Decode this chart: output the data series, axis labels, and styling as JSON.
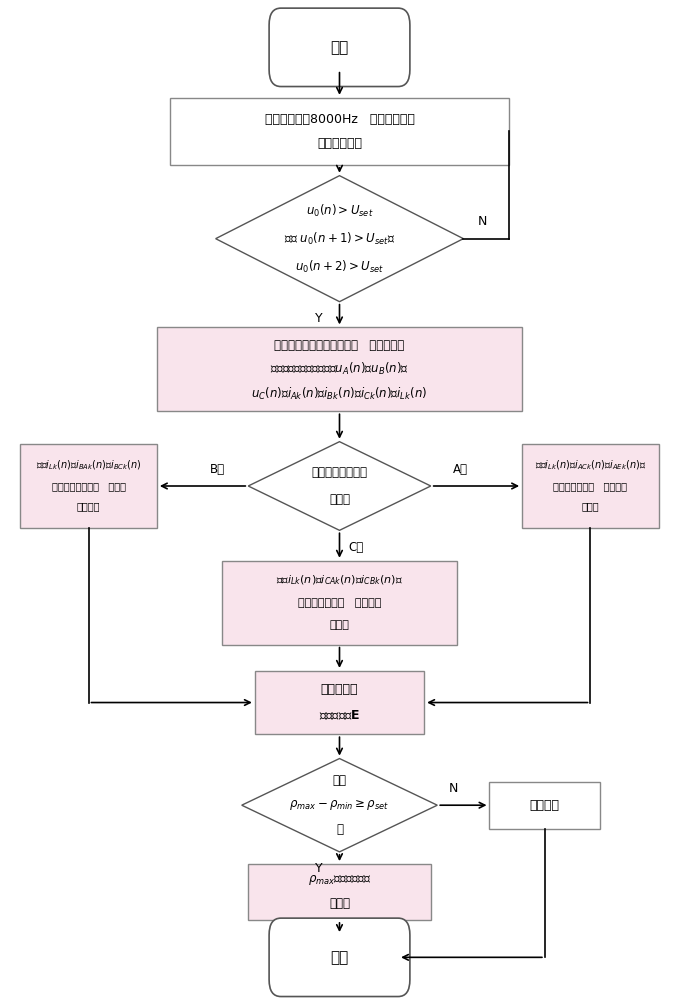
{
  "bg_color": "#ffffff",
  "line_color": "#000000",
  "box_border": "#555555",
  "pink_fill": "#f9e4ec",
  "gray_fill": "#eeeeee",
  "white_fill": "#ffffff",
  "start_text": "开始",
  "end_text": "结束",
  "sample_text": "设采样频率为8000Hz   对配电网母线\n零序电压采样",
  "diamond1_line1": "$u_0(n)>U_{set}$",
  "diamond1_line2": "满足 $u_0(n+1)>U_{set}$？",
  "diamond1_line3": "$u_0(n+2)>U_{set}$",
  "record_line1": "配电网发生了单相接地故障   记录故障发",
  "record_line2": "生后一个周期的采样序列$u_A(n)$、$u_B(n)$、",
  "record_line3": "$u_C(n)$、$i_{Ak}(n)$、$i_{Bk}(n)$、$i_{Ck}(n)$、$i_{Lk}(n)$",
  "bus_diamond_line1": "母线相电压故障选",
  "bus_diamond_line2": "相判断",
  "phase_b_line1": "对：$i_{Lk}(n)$、$i_{BAk}(n)$、$i_{BCk}(n)$",
  "phase_b_line2": "进行数字阶波处理   并进行",
  "phase_b_line3": "相关分析",
  "phase_a_line1": "对：$i_{Lk}(n)$、$i_{ACk}(n)$、$i_{AEk}(n)$进",
  "phase_a_line2": "行数字阶波处理   并进行桂",
  "phase_a_line3": "关分析",
  "phase_c_line1": "对：$i_{Lk}(n)$、$i_{CAk}(n)$、$i_{CBk}(n)$进",
  "phase_c_line2": "行数字阶波处理   并进行桂",
  "phase_c_line3": "关分析",
  "matrix_line1": "形成综合相",
  "matrix_line2": "关系数矩阵$\\mathbf{E}$",
  "diamond2_line1": "满足",
  "diamond2_line2": "$\\rho_{max}-\\rho_{min}\\geq\\rho_{set}$",
  "diamond2_line3": "？",
  "busfault_text": "母线故障",
  "faultline_line1": "$\\rho_{max}$对应线路为故",
  "faultline_line2": "障线路",
  "label_N": "N",
  "label_Y": "Y",
  "label_A": "A相",
  "label_B": "B相",
  "label_C": "C相"
}
